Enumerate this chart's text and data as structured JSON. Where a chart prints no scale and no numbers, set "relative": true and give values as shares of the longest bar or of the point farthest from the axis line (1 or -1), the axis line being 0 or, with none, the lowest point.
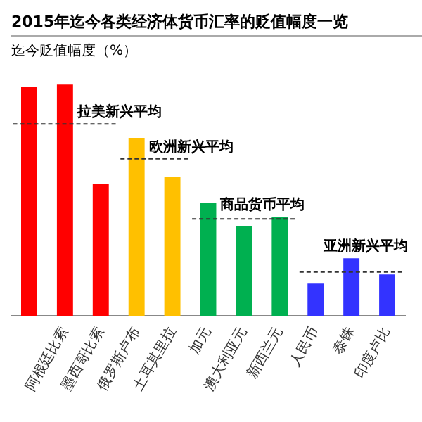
{
  "chart_data": {
    "type": "bar",
    "title": "2015年迄今各类经济体货币汇率的贬值幅度一览",
    "ylabel": "迄今贬值幅度（%）",
    "relative": true,
    "categories": [
      null,
      "阿根廷比索",
      "墨西哥比索",
      "俄罗斯卢布",
      "土耳其里拉",
      "加元",
      "澳大利亚元",
      "新西兰元",
      "人民币",
      "泰铢",
      "印度卢比"
    ],
    "values": [
      0.99,
      1,
      0.57,
      0.77,
      0.6,
      0.49,
      0.39,
      0.43,
      0.14,
      0.25,
      0.18
    ],
    "colors": [
      "#ff0000",
      "#ff0000",
      "#ff0000",
      "#ffc000",
      "#ffc000",
      "#00b050",
      "#00b050",
      "#00b050",
      "#3333ff",
      "#3333ff",
      "#3333ff"
    ],
    "ref_lines": [
      {
        "axis": "y",
        "value": 0.83,
        "label": "拉美新兴平均",
        "line_style": "dashed"
      },
      {
        "axis": "y",
        "value": 0.68,
        "label": "欧洲新兴平均",
        "line_style": "dashed"
      },
      {
        "axis": "y",
        "value": 0.42,
        "label": "商品货币平均",
        "line_style": "dashed"
      },
      {
        "axis": "y",
        "value": 0.19,
        "label": "亚洲新兴平均",
        "line_style": "dashed"
      }
    ],
    "grid": false,
    "legend": false
  }
}
